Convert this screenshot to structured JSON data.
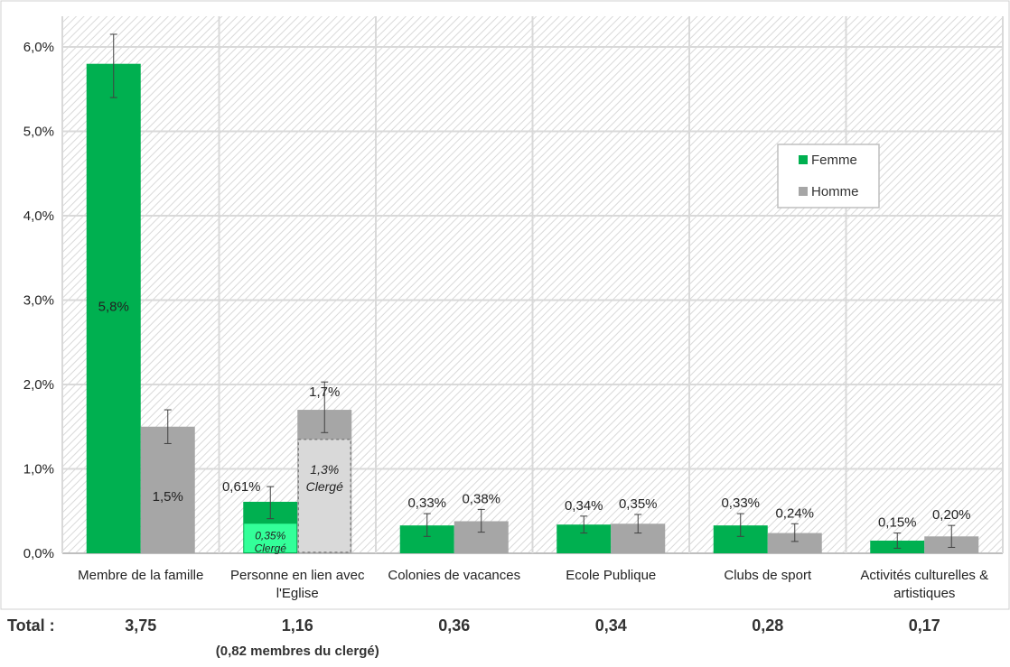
{
  "chart_data": {
    "type": "bar",
    "categories": [
      [
        "Membre de la famille"
      ],
      [
        "Personne en lien avec",
        "l'Eglise"
      ],
      [
        "Colonies de vacances"
      ],
      [
        "Ecole Publique"
      ],
      [
        "Clubs de sport"
      ],
      [
        "Activités culturelles &",
        "artistiques"
      ]
    ],
    "series": [
      {
        "name": "Femme",
        "color": "#00b050",
        "values": [
          5.8,
          0.61,
          0.33,
          0.34,
          0.33,
          0.15
        ],
        "labels": [
          "5,8%",
          "0,61%",
          "0,33%",
          "0,34%",
          "0,33%",
          "0,15%"
        ],
        "error": [
          [
            5.4,
            6.15
          ],
          [
            0.41,
            0.79
          ],
          [
            0.2,
            0.47
          ],
          [
            0.24,
            0.44
          ],
          [
            0.2,
            0.47
          ],
          [
            0.06,
            0.24
          ]
        ]
      },
      {
        "name": "Homme",
        "color": "#a6a6a6",
        "values": [
          1.5,
          1.7,
          0.38,
          0.35,
          0.24,
          0.2
        ],
        "labels": [
          "1,5%",
          "1,7%",
          "0,38%",
          "0,35%",
          "0,24%",
          "0,20%"
        ],
        "error": [
          [
            1.3,
            1.7
          ],
          [
            1.43,
            2.03
          ],
          [
            0.25,
            0.52
          ],
          [
            0.24,
            0.46
          ],
          [
            0.14,
            0.35
          ],
          [
            0.07,
            0.33
          ]
        ]
      }
    ],
    "sub_bars": [
      {
        "category_index": 1,
        "series": "Femme",
        "value": 0.35,
        "label": [
          "0,35%",
          "Clergé"
        ],
        "color": "#33ff99"
      },
      {
        "category_index": 1,
        "series": "Homme",
        "value": 1.35,
        "label": [
          "1,3%",
          "Clergé"
        ],
        "color": "#d9d9d9"
      }
    ],
    "yaxis": {
      "min": 0,
      "max": 6.0,
      "ticks": [
        0,
        1,
        2,
        3,
        4,
        5,
        6
      ],
      "tick_labels": [
        "0,0%",
        "1,0%",
        "2,0%",
        "3,0%",
        "4,0%",
        "5,0%",
        "6,0%"
      ]
    },
    "grid": true,
    "legend": "top-right",
    "total_label": "Total :",
    "totals": [
      "3,75",
      "1,16",
      "0,36",
      "0,34",
      "0,28",
      "0,17"
    ],
    "total_note": "(0,82 membres du clergé)"
  }
}
